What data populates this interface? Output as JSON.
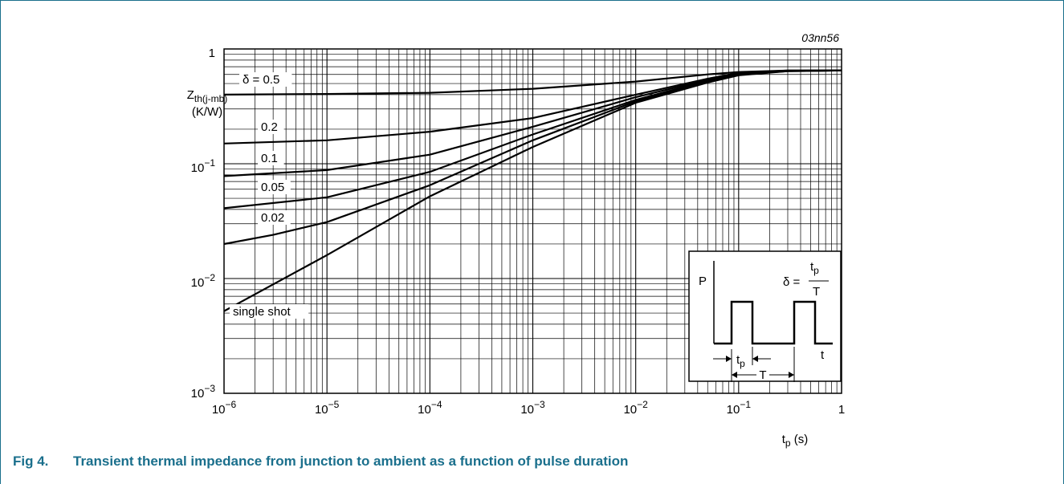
{
  "figure_code": "03nn56",
  "caption": {
    "label": "Fig 4.",
    "text": "Transient thermal impedance from junction to ambient as a function of pulse duration"
  },
  "chart_data": {
    "type": "line",
    "xscale": "log",
    "yscale": "log",
    "xlim": [
      1e-06,
      1
    ],
    "ylim": [
      0.001,
      1
    ],
    "grid": true,
    "xlabel": {
      "main": "t",
      "sub": "p",
      "unit": "(s)"
    },
    "ylabel": {
      "main": "Z",
      "sub": "th(j-mb)",
      "unit": "(K/W)"
    },
    "x_ticks": [
      {
        "base": "10",
        "exp": "−6"
      },
      {
        "base": "10",
        "exp": "−5"
      },
      {
        "base": "10",
        "exp": "−4"
      },
      {
        "base": "10",
        "exp": "−3"
      },
      {
        "base": "10",
        "exp": "−2"
      },
      {
        "base": "10",
        "exp": "−1"
      },
      {
        "base": "1",
        "exp": ""
      }
    ],
    "y_ticks": [
      {
        "base": "10",
        "exp": "−3"
      },
      {
        "base": "10",
        "exp": "−2"
      },
      {
        "base": "10",
        "exp": "−1"
      },
      {
        "base": "1",
        "exp": ""
      }
    ],
    "series": [
      {
        "name": "δ = 0.5",
        "points": [
          [
            1e-06,
            0.4
          ],
          [
            1e-05,
            0.405
          ],
          [
            0.0001,
            0.415
          ],
          [
            0.001,
            0.45
          ],
          [
            0.01,
            0.52
          ],
          [
            0.05,
            0.6
          ],
          [
            0.1,
            0.63
          ],
          [
            0.3,
            0.65
          ],
          [
            1,
            0.65
          ]
        ]
      },
      {
        "name": "0.2",
        "points": [
          [
            1e-06,
            0.15
          ],
          [
            1e-05,
            0.16
          ],
          [
            0.0001,
            0.19
          ],
          [
            0.001,
            0.25
          ],
          [
            0.01,
            0.4
          ],
          [
            0.05,
            0.55
          ],
          [
            0.1,
            0.62
          ],
          [
            0.3,
            0.65
          ],
          [
            1,
            0.65
          ]
        ]
      },
      {
        "name": "0.1",
        "points": [
          [
            1e-06,
            0.078
          ],
          [
            1e-05,
            0.088
          ],
          [
            0.0001,
            0.12
          ],
          [
            0.001,
            0.21
          ],
          [
            0.01,
            0.38
          ],
          [
            0.05,
            0.54
          ],
          [
            0.1,
            0.61
          ],
          [
            0.3,
            0.645
          ],
          [
            1,
            0.65
          ]
        ]
      },
      {
        "name": "0.05",
        "points": [
          [
            1e-06,
            0.041
          ],
          [
            1e-05,
            0.051
          ],
          [
            0.0001,
            0.085
          ],
          [
            0.001,
            0.18
          ],
          [
            0.01,
            0.36
          ],
          [
            0.05,
            0.53
          ],
          [
            0.1,
            0.6
          ],
          [
            0.3,
            0.645
          ],
          [
            1,
            0.65
          ]
        ]
      },
      {
        "name": "0.02",
        "points": [
          [
            1e-06,
            0.02
          ],
          [
            3e-06,
            0.024
          ],
          [
            1e-05,
            0.031
          ],
          [
            0.0001,
            0.065
          ],
          [
            0.001,
            0.16
          ],
          [
            0.01,
            0.35
          ],
          [
            0.05,
            0.52
          ],
          [
            0.1,
            0.6
          ],
          [
            0.3,
            0.64
          ],
          [
            1,
            0.65
          ]
        ]
      },
      {
        "name": "single shot",
        "points": [
          [
            1e-06,
            0.0052
          ],
          [
            1e-05,
            0.016
          ],
          [
            0.0001,
            0.052
          ],
          [
            0.001,
            0.14
          ],
          [
            0.01,
            0.34
          ],
          [
            0.05,
            0.51
          ],
          [
            0.1,
            0.59
          ],
          [
            0.3,
            0.64
          ],
          [
            1,
            0.65
          ]
        ]
      }
    ],
    "inset": {
      "p_label": "P",
      "t_label": "t",
      "tp_main": "t",
      "tp_sub": "p",
      "T_label": "T",
      "delta_lhs": "δ =",
      "frac_num_main": "t",
      "frac_num_sub": "p",
      "frac_den": "T"
    }
  }
}
